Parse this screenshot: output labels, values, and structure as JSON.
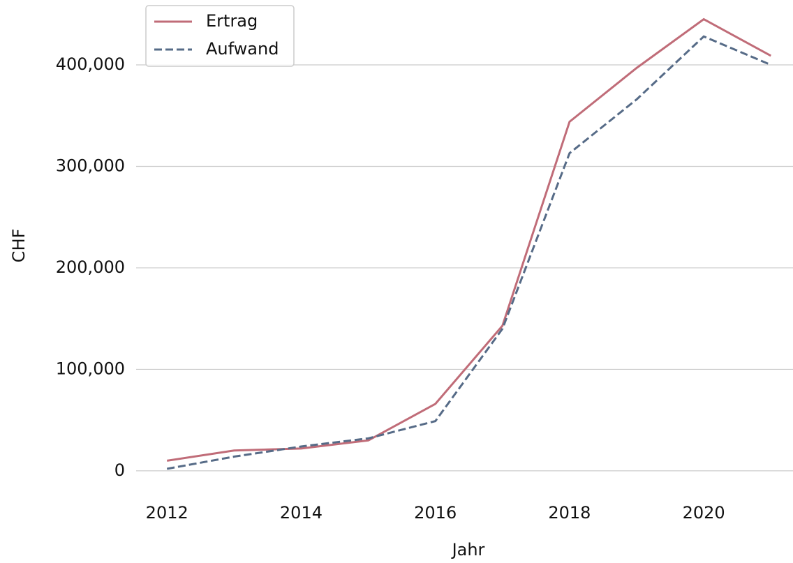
{
  "chart_data": {
    "type": "line",
    "x": [
      2012,
      2013,
      2014,
      2015,
      2016,
      2017,
      2018,
      2019,
      2020,
      2021
    ],
    "series": [
      {
        "name": "Ertrag",
        "color": "#c06c78",
        "linestyle": "solid",
        "values": [
          10000,
          20000,
          22000,
          30000,
          66000,
          143000,
          344000,
          397000,
          445000,
          409000
        ]
      },
      {
        "name": "Aufwand",
        "color": "#566b87",
        "linestyle": "dashed",
        "values": [
          2000,
          14000,
          24000,
          32000,
          49000,
          140000,
          313000,
          366000,
          428000,
          400000
        ]
      }
    ],
    "xlabel": "Jahr",
    "ylabel": "CHF",
    "xlim": [
      2011.54,
      2021.33
    ],
    "xticks": [
      2012,
      2014,
      2016,
      2018,
      2020
    ],
    "ylim": [
      -20000,
      460000
    ],
    "yticks": [
      0,
      {
        "value": 100000,
        "label": "100,000"
      },
      {
        "value": 200000,
        "label": "200,000"
      },
      {
        "value": 300000,
        "label": "300,000"
      },
      {
        "value": 400000,
        "label": "400,000"
      }
    ],
    "grid": true,
    "legend": "upper left"
  }
}
